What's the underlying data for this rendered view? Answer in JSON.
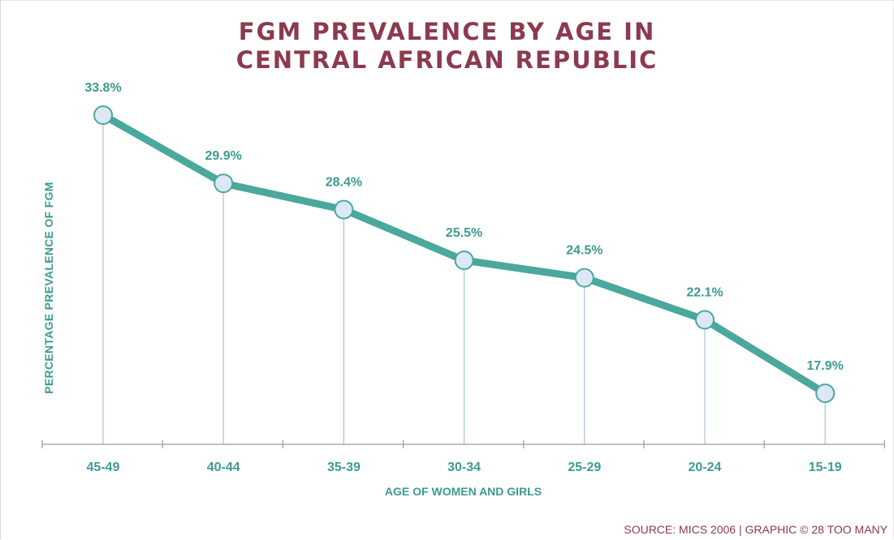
{
  "chart_data": {
    "type": "line",
    "title_lines": [
      "FGM PREVALENCE BY AGE IN",
      "CENTRAL AFRICAN REPUBLIC"
    ],
    "xlabel": "AGE OF WOMEN AND GIRLS",
    "ylabel": "PERCENTAGE PREVALENCE OF FGM",
    "categories": [
      "45-49",
      "40-44",
      "35-39",
      "30-34",
      "25-29",
      "20-24",
      "15-19"
    ],
    "series": [
      {
        "values": [
          33.8,
          29.9,
          28.4,
          25.5,
          24.5,
          22.1,
          17.9
        ]
      }
    ],
    "data_labels": [
      "33.8%",
      "29.9%",
      "28.4%",
      "25.5%",
      "24.5%",
      "22.1%",
      "17.9%"
    ],
    "grid": false,
    "colors": {
      "line": "#4aa89c",
      "marker_fill": "#dce8f5",
      "marker_stroke": "#4aa89c",
      "drop_line": "#a9c2e0",
      "axis": "#9a9a9a",
      "title": "#8c3a4e",
      "label": "#3d9b8f"
    }
  },
  "source": "SOURCE: MICS 2006 | GRAPHIC © 28 TOO MANY"
}
